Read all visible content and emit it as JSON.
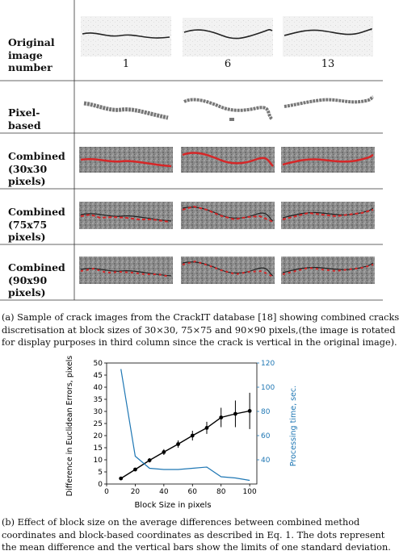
{
  "table": {
    "row_labels": [
      [
        "Original",
        "image",
        "number"
      ],
      [
        "Pixel-",
        "based"
      ],
      [
        "Combined",
        "(30x30",
        "pixels)"
      ],
      [
        "Combined",
        "(75x75",
        "pixels)"
      ],
      [
        "Combined",
        "(90x90",
        "pixels)"
      ]
    ],
    "image_numbers": [
      "1",
      "6",
      "13"
    ]
  },
  "caption_a": [
    "(a) Sample of crack images from the CrackIT database [18] showing combined cracks",
    "discretisation at block sizes of 30×30, 75×75 and 90×90 pixels,(the image is rotated",
    "for display purposes in third column since the crack is vertical in the original image)."
  ],
  "caption_b": [
    "(b)  Effect of block size on the average differences between combined method",
    "coordinates and block-based coordinates as described in Eq. 1.  The dots represent",
    "the mean difference and the vertical bars show the limits of one standard deviation."
  ],
  "colors": {
    "error_series": "#000000",
    "time_series": "#1f77b4",
    "crack_overlay": "#d62728"
  },
  "chart_data": {
    "type": "line",
    "xlabel": "Block Size in pixels",
    "ylabel": "Difference in Euclidean Errors, pixels",
    "y2label": "Processing time, sec.",
    "xlim": [
      0,
      105
    ],
    "ylim": [
      0,
      50
    ],
    "y2lim": [
      20,
      120
    ],
    "x_ticks": [
      "0",
      "20",
      "40",
      "60",
      "80",
      "100"
    ],
    "y_ticks": [
      "0",
      "5",
      "10",
      "15",
      "20",
      "25",
      "30",
      "35",
      "40",
      "45",
      "50"
    ],
    "y2_ticks": [
      "40",
      "60",
      "80",
      "100",
      "120"
    ],
    "series": [
      {
        "axis": "left",
        "color": "#000000",
        "x": [
          10,
          20,
          30,
          40,
          50,
          60,
          70,
          80,
          90,
          100
        ],
        "values": [
          2.3,
          6.0,
          9.8,
          13.2,
          16.5,
          20.0,
          23.2,
          27.5,
          29.0,
          30.2
        ],
        "error": [
          0.5,
          0.7,
          0.9,
          1.2,
          1.5,
          2.0,
          2.5,
          4.0,
          5.5,
          7.5
        ]
      },
      {
        "axis": "right",
        "color": "#1f77b4",
        "x": [
          10,
          20,
          30,
          40,
          50,
          60,
          70,
          80,
          90,
          100
        ],
        "values": [
          115,
          43,
          33,
          32,
          32,
          33,
          34,
          26,
          25,
          23
        ]
      }
    ]
  }
}
